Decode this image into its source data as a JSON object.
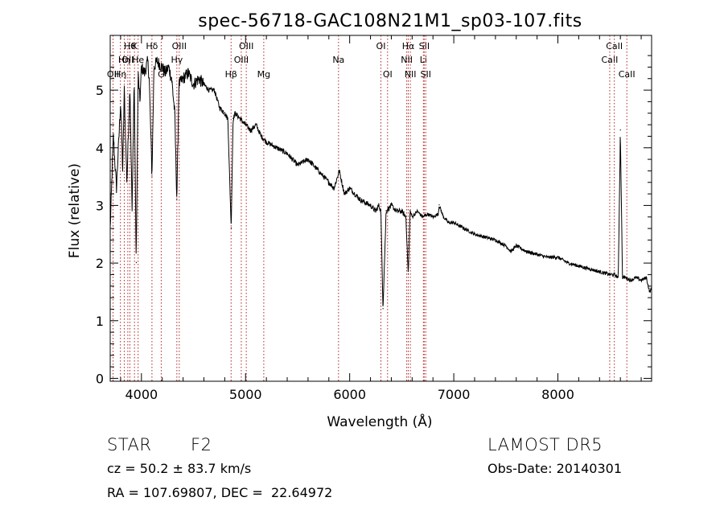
{
  "chart_data": {
    "type": "line",
    "title": "spec-56718-GAC108N21M1_sp03-107.fits",
    "xlabel": "Wavelength (Å)",
    "ylabel": "Flux (relative)",
    "xlim": [
      3700,
      8900
    ],
    "ylim": [
      -0.05,
      5.95
    ],
    "xticks": [
      4000,
      5000,
      6000,
      7000,
      8000
    ],
    "yticks": [
      0,
      1,
      2,
      3,
      4,
      5
    ],
    "grid": false,
    "series": [
      {
        "x": [
          3700,
          3730,
          3760,
          3800,
          3820,
          3835,
          3860,
          3890,
          3910,
          3930,
          3950,
          3968,
          3985,
          4000,
          4030,
          4060,
          4075,
          4101,
          4120,
          4150,
          4200,
          4230,
          4260,
          4290,
          4320,
          4340,
          4360,
          4400,
          4450,
          4500,
          4550,
          4600,
          4650,
          4700,
          4750,
          4800,
          4830,
          4862,
          4880,
          4900,
          4950,
          5000,
          5050,
          5100,
          5150,
          5200,
          5300,
          5400,
          5500,
          5600,
          5700,
          5800,
          5850,
          5900,
          5950,
          6000,
          6100,
          6200,
          6250,
          6280,
          6300,
          6320,
          6350,
          6400,
          6450,
          6500,
          6540,
          6563,
          6580,
          6600,
          6650,
          6700,
          6750,
          6800,
          6850,
          6860,
          6900,
          6950,
          7000,
          7100,
          7200,
          7300,
          7400,
          7500,
          7550,
          7600,
          7700,
          7800,
          7900,
          8000,
          8100,
          8200,
          8300,
          8400,
          8500,
          8540,
          8580,
          8600,
          8620,
          8650,
          8700,
          8750,
          8800,
          8850,
          8880,
          8900
        ],
        "y": [
          2.6,
          4.2,
          3.3,
          4.8,
          3.6,
          5.0,
          3.4,
          5.1,
          2.9,
          5.2,
          2.0,
          5.3,
          4.8,
          5.4,
          5.3,
          5.5,
          5.2,
          3.5,
          5.4,
          5.5,
          5.4,
          5.3,
          5.4,
          5.2,
          4.6,
          3.1,
          5.1,
          5.2,
          5.3,
          5.1,
          5.2,
          5.1,
          5.0,
          5.0,
          4.7,
          4.6,
          4.5,
          2.6,
          4.5,
          4.6,
          4.5,
          4.4,
          4.3,
          4.4,
          4.2,
          4.1,
          4.0,
          3.9,
          3.7,
          3.8,
          3.6,
          3.4,
          3.3,
          3.6,
          3.2,
          3.3,
          3.1,
          3.0,
          2.9,
          3.0,
          2.9,
          1.2,
          2.9,
          3.0,
          2.9,
          2.9,
          2.8,
          1.8,
          2.9,
          2.8,
          2.9,
          2.8,
          2.85,
          2.8,
          2.85,
          3.0,
          2.8,
          2.7,
          2.7,
          2.6,
          2.5,
          2.45,
          2.4,
          2.3,
          2.2,
          2.3,
          2.2,
          2.15,
          2.1,
          2.1,
          2.0,
          1.95,
          1.9,
          1.85,
          1.8,
          1.8,
          1.75,
          4.3,
          1.75,
          1.75,
          1.7,
          1.75,
          1.7,
          1.75,
          1.5,
          1.55
        ]
      }
    ],
    "lines": [
      {
        "x": 3727,
        "label": "OII",
        "row": 3
      },
      {
        "x": 3798,
        "label": "Hη",
        "row": 3
      },
      {
        "x": 3835,
        "label": "Hη",
        "row": 2
      },
      {
        "x": 3869,
        "label": "OII",
        "row": 2
      },
      {
        "x": 3889,
        "label": "Hθ",
        "row": 1
      },
      {
        "x": 3933,
        "label": "K",
        "row": 1
      },
      {
        "x": 3968,
        "label": "He",
        "row": 2
      },
      {
        "x": 4101,
        "label": "Hδ",
        "row": 1
      },
      {
        "x": 4190,
        "label": "G",
        "row": 3
      },
      {
        "x": 4340,
        "label": "Hγ",
        "row": 2
      },
      {
        "x": 4363,
        "label": "OIII",
        "row": 1
      },
      {
        "x": 4861,
        "label": "Hβ",
        "row": 3
      },
      {
        "x": 4959,
        "label": "OIII",
        "row": 2
      },
      {
        "x": 5007,
        "label": "OIII",
        "row": 1
      },
      {
        "x": 5175,
        "label": "Mg",
        "row": 3
      },
      {
        "x": 5893,
        "label": "Na",
        "row": 2
      },
      {
        "x": 6300,
        "label": "OI",
        "row": 1
      },
      {
        "x": 6364,
        "label": "OI",
        "row": 3
      },
      {
        "x": 6548,
        "label": "NII",
        "row": 2
      },
      {
        "x": 6563,
        "label": "Hα",
        "row": 1
      },
      {
        "x": 6583,
        "label": "NII",
        "row": 3
      },
      {
        "x": 6708,
        "label": "Li",
        "row": 2
      },
      {
        "x": 6716,
        "label": "SII",
        "row": 1
      },
      {
        "x": 6731,
        "label": "SII",
        "row": 3
      },
      {
        "x": 8498,
        "label": "CaII",
        "row": 2
      },
      {
        "x": 8542,
        "label": "CaII",
        "row": 1
      },
      {
        "x": 8662,
        "label": "CaII",
        "row": 3
      }
    ]
  },
  "info": {
    "obj_class": "STAR",
    "subclass": "F2",
    "survey": "LAMOST DR5",
    "cz": "cz = 50.2 ± 83.7 km/s",
    "obs_date": "Obs-Date: 20140301",
    "coords": "RA = 107.69807, DEC =  22.64972"
  },
  "colors": {
    "line_marker": "#b22222",
    "spectrum": "#000000",
    "axes": "#000000"
  }
}
